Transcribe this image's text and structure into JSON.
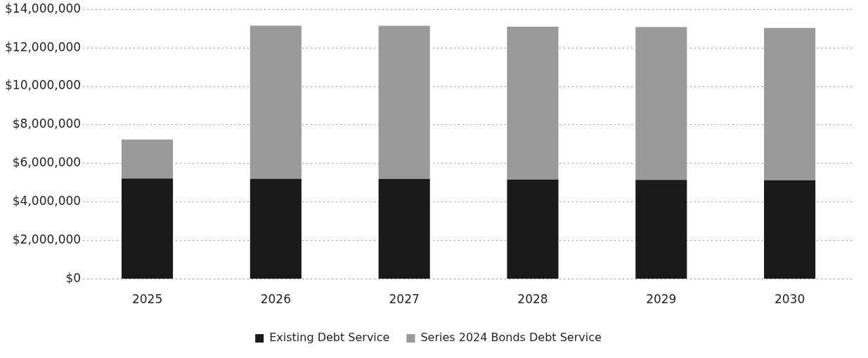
{
  "chart_data": {
    "type": "bar",
    "stacked": true,
    "categories": [
      "2025",
      "2026",
      "2027",
      "2028",
      "2029",
      "2030"
    ],
    "series": [
      {
        "name": "Existing Debt Service",
        "color": "#1a1a1a",
        "values": [
          5220000,
          5200000,
          5190000,
          5170000,
          5150000,
          5130000
        ]
      },
      {
        "name": "Series 2024 Bonds Debt Service",
        "color": "#9a9a9a",
        "values": [
          2020000,
          7950000,
          7950000,
          7930000,
          7930000,
          7900000
        ]
      }
    ],
    "ylim": [
      0,
      14000000
    ],
    "yticks": [
      {
        "value": 0,
        "label": "$0"
      },
      {
        "value": 2000000,
        "label": "$2,000,000"
      },
      {
        "value": 4000000,
        "label": "$4,000,000"
      },
      {
        "value": 6000000,
        "label": "$6,000,000"
      },
      {
        "value": 8000000,
        "label": "$8,000,000"
      },
      {
        "value": 10000000,
        "label": "$10,000,000"
      },
      {
        "value": 12000000,
        "label": "$12,000,000"
      },
      {
        "value": 14000000,
        "label": "$14,000,000"
      }
    ],
    "grid": "y",
    "legend": "bottom"
  }
}
